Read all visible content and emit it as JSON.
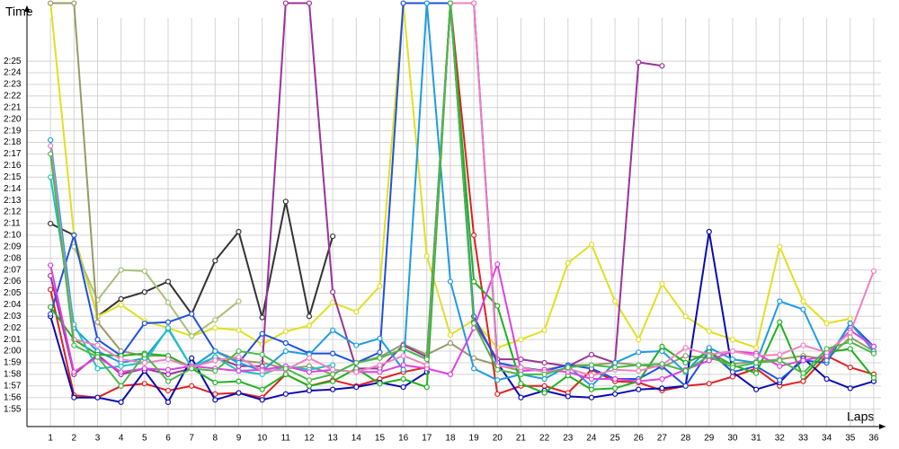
{
  "chart_data": {
    "type": "line",
    "y_label": "Time",
    "x_label": "Laps",
    "x": [
      1,
      2,
      3,
      4,
      5,
      6,
      7,
      8,
      9,
      10,
      11,
      12,
      13,
      14,
      15,
      16,
      17,
      18,
      19,
      20,
      21,
      22,
      23,
      24,
      25,
      26,
      27,
      28,
      29,
      30,
      31,
      32,
      33,
      34,
      35,
      36
    ],
    "xlim": [
      0,
      36.5
    ],
    "xticks": [
      1,
      2,
      3,
      4,
      5,
      6,
      7,
      8,
      9,
      10,
      11,
      12,
      13,
      14,
      15,
      16,
      17,
      18,
      19,
      20,
      21,
      22,
      23,
      24,
      25,
      26,
      27,
      28,
      29,
      30,
      31,
      32,
      33,
      34,
      35,
      36
    ],
    "ylim": [
      113.5,
      149.5
    ],
    "yticks": [
      {
        "value": 115,
        "label": "1:55"
      },
      {
        "value": 116,
        "label": "1:56"
      },
      {
        "value": 117,
        "label": "1:57"
      },
      {
        "value": 118,
        "label": "1:58"
      },
      {
        "value": 119,
        "label": "1:59"
      },
      {
        "value": 120,
        "label": "2:00"
      },
      {
        "value": 121,
        "label": "2:01"
      },
      {
        "value": 122,
        "label": "2:02"
      },
      {
        "value": 123,
        "label": "2:03"
      },
      {
        "value": 124,
        "label": "2:04"
      },
      {
        "value": 125,
        "label": "2:05"
      },
      {
        "value": 126,
        "label": "2:06"
      },
      {
        "value": 127,
        "label": "2:07"
      },
      {
        "value": 128,
        "label": "2:08"
      },
      {
        "value": 129,
        "label": "2:09"
      },
      {
        "value": 130,
        "label": "2:10"
      },
      {
        "value": 131,
        "label": "2:11"
      },
      {
        "value": 132,
        "label": "2:12"
      },
      {
        "value": 133,
        "label": "2:13"
      },
      {
        "value": 134,
        "label": "2:14"
      },
      {
        "value": 135,
        "label": "2:15"
      },
      {
        "value": 136,
        "label": "2:16"
      },
      {
        "value": 137,
        "label": "2:17"
      },
      {
        "value": 138,
        "label": "2:18"
      },
      {
        "value": 139,
        "label": "2:19"
      },
      {
        "value": 140,
        "label": "2:20"
      },
      {
        "value": 141,
        "label": "2:21"
      },
      {
        "value": 142,
        "label": "2:22"
      },
      {
        "value": 143,
        "label": "2:23"
      },
      {
        "value": 144,
        "label": "2:24"
      },
      {
        "value": 145,
        "label": "2:25"
      }
    ],
    "grid": true,
    "series": [
      {
        "color": "#333333",
        "values": [
          131,
          130,
          123,
          124.5,
          125.1,
          126,
          123.2,
          127.8,
          130.3,
          122.9,
          132.9,
          123,
          129.9,
          null,
          null,
          null,
          null,
          null,
          null,
          null,
          null,
          null,
          null,
          null,
          null,
          null,
          null,
          null,
          null,
          null,
          null,
          null,
          null,
          null,
          null,
          null
        ]
      },
      {
        "color": "#e0e020",
        "values": [
          150,
          130,
          123,
          124,
          122.6,
          122,
          121.3,
          122,
          121.8,
          120.6,
          121.7,
          122.2,
          124.2,
          123.4,
          125.6,
          150,
          128.2,
          121.4,
          122.7,
          120.3,
          121,
          121.8,
          127.6,
          129.2,
          124.3,
          121,
          125.8,
          123,
          121.7,
          121,
          120.3,
          129,
          124.3,
          122.4,
          122.8,
          null
        ]
      },
      {
        "color": "#a8c078",
        "values": [
          null,
          129,
          124.4,
          127,
          126.9,
          124.2,
          121.3,
          122.7,
          124.3,
          null,
          null,
          null,
          null,
          null,
          null,
          null,
          null,
          null,
          null,
          null,
          null,
          null,
          null,
          null,
          null,
          null,
          null,
          null,
          null,
          null,
          null,
          null,
          null,
          null,
          null,
          null
        ]
      },
      {
        "color": "#999966",
        "values": [
          150,
          150,
          122.5,
          120,
          119.6,
          119.6,
          118.6,
          120,
          119.2,
          119,
          118.5,
          118.7,
          118,
          119,
          119.5,
          120.6,
          119.7,
          120.7,
          119.4,
          118.8,
          118.3,
          118.4,
          118.8,
          118.8,
          119,
          118.8,
          118.6,
          119.6,
          119.4,
          118.9,
          119.1,
          119.3,
          119.6,
          119.3,
          121.2,
          120
        ]
      },
      {
        "color": "#993399",
        "values": [
          126.5,
          118,
          119.7,
          118,
          118.5,
          118,
          118.5,
          119.5,
          118.7,
          118.7,
          150,
          150,
          125.1,
          118.5,
          118.5,
          120.5,
          119.5,
          150,
          122.5,
          119.3,
          119.3,
          119,
          118.7,
          119.7,
          119,
          144.9,
          144.6,
          null,
          null,
          null,
          null,
          null,
          null,
          null,
          null,
          null
        ]
      },
      {
        "color": "#e02020",
        "values": [
          125.3,
          116.2,
          116,
          117,
          117.2,
          116.6,
          117,
          116.3,
          116.4,
          116,
          118,
          117,
          117.5,
          117,
          117.6,
          118.2,
          118.6,
          150,
          130,
          116.3,
          117,
          117,
          116.4,
          118.4,
          117.4,
          117.3,
          116.6,
          117,
          117.2,
          117.8,
          118.5,
          117,
          117.4,
          119.6,
          118.6,
          118
        ]
      },
      {
        "color": "#0a0ab0",
        "values": [
          123,
          116,
          116,
          115.6,
          118.3,
          115.6,
          119.4,
          115.8,
          116.4,
          115.8,
          116.3,
          116.6,
          116.7,
          116.9,
          117.3,
          116.9,
          118.2,
          150,
          150,
          119,
          116,
          116.6,
          116.1,
          116,
          116.3,
          116.7,
          116.8,
          117,
          130.3,
          118.2,
          116.7,
          117.3,
          119.4,
          117.6,
          116.8,
          117.4
        ]
      },
      {
        "color": "#1e50e0",
        "values": [
          123.2,
          130,
          121,
          119.6,
          122.4,
          122.5,
          123.2,
          120,
          119,
          121.5,
          120.7,
          119.8,
          119.8,
          119,
          119.9,
          150,
          150,
          150,
          123,
          119,
          118.6,
          118.3,
          118.8,
          118.5,
          117.6,
          117.6,
          118.7,
          117,
          120,
          118.2,
          118.7,
          117.5,
          119.2,
          119,
          122.4,
          120.4
        ]
      },
      {
        "color": "#1e9be0",
        "values": [
          138.2,
          122,
          120,
          119,
          119.4,
          121.9,
          118.6,
          120,
          119,
          118.3,
          120,
          119.7,
          121.8,
          120.5,
          121.1,
          118.4,
          150,
          126,
          118.5,
          117.5,
          118,
          117.6,
          118.7,
          117,
          119,
          119.9,
          120,
          118.2,
          120.3,
          119.3,
          119,
          124.3,
          123.6,
          119.2,
          122.4,
          120
        ]
      },
      {
        "color": "#20b020",
        "values": [
          123.8,
          121,
          119.7,
          119.6,
          119.8,
          119.6,
          118.5,
          117.3,
          117.4,
          116.7,
          118,
          117,
          117.4,
          118.5,
          117.2,
          117.6,
          116.9,
          150,
          126,
          123.9,
          117.2,
          116.4,
          117.9,
          116.7,
          116.8,
          117.4,
          120.4,
          119,
          119.9,
          118.8,
          118.1,
          122.5,
          117.8,
          119.9,
          120.2,
          117.7
        ]
      },
      {
        "color": "#20c0c0",
        "values": [
          135,
          122.3,
          118.5,
          118.7,
          119,
          122,
          118.6,
          119.5,
          118.3,
          118,
          118.7,
          118.4,
          118.8,
          null,
          null,
          null,
          null,
          null,
          null,
          null,
          null,
          null,
          null,
          null,
          null,
          null,
          null,
          null,
          null,
          null,
          null,
          null,
          null,
          null,
          null,
          null
        ]
      },
      {
        "color": "#e040e0",
        "values": [
          127.4,
          118.2,
          119.5,
          118.2,
          118.5,
          118.4,
          118.7,
          118.5,
          118.3,
          118.4,
          118.7,
          118.2,
          118.4,
          118.2,
          118.2,
          118.8,
          118.5,
          118,
          122,
          127.5,
          118.3,
          118.4,
          118.2,
          117.6,
          117.6,
          117.4,
          117.6,
          118.4,
          119.2,
          120,
          119.8,
          118.7,
          119.2,
          119.6,
          121.8,
          120.4
        ]
      },
      {
        "color": "#f080c0",
        "values": [
          137.7,
          121,
          120.5,
          119.3,
          119,
          119.3,
          118.6,
          119.2,
          119.5,
          118.3,
          118.4,
          119.4,
          118.4,
          118.2,
          118.8,
          119.6,
          118.8,
          150,
          150,
          118.7,
          118.6,
          118.2,
          118.5,
          117.9,
          118.4,
          118.3,
          118.8,
          120.3,
          119.7,
          120,
          119.6,
          119.7,
          120.5,
          119.9,
          121.6,
          126.9
        ]
      },
      {
        "color": "#48b848",
        "values": [
          137,
          120.5,
          119.5,
          117,
          119.7,
          117.4,
          118.5,
          118.3,
          120,
          119.7,
          118.5,
          117.5,
          118,
          119,
          119.4,
          120.2,
          119.3,
          150,
          122.4,
          118.4,
          118,
          118,
          118.6,
          118.8,
          118.6,
          118.8,
          118.9,
          118.3,
          119.6,
          118.6,
          119,
          119.2,
          118.1,
          120.2,
          120.8,
          119.8
        ]
      }
    ]
  }
}
